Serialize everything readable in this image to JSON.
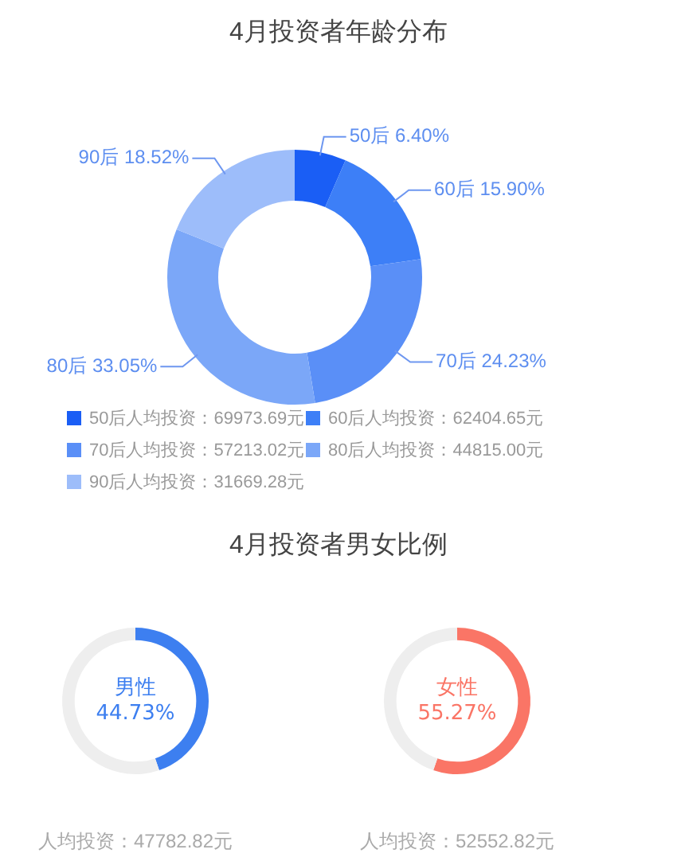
{
  "chart_data": [
    {
      "type": "donut",
      "title": "4月投资者年龄分布",
      "categories": [
        "50后",
        "60后",
        "70后",
        "80后",
        "90后"
      ],
      "values": [
        6.4,
        15.9,
        24.23,
        33.05,
        18.52
      ],
      "colors": [
        "#1a5ef5",
        "#3d7ff7",
        "#5a8ff7",
        "#7ba7f8",
        "#9dbdfa"
      ],
      "value_labels": [
        "6.40%",
        "15.90%",
        "24.23%",
        "33.05%",
        "18.52%"
      ],
      "annotations": [
        "人均投资：69973.69元",
        "人均投资：62404.65元",
        "人均投资：57213.02元",
        "人均投资：44815.00元",
        "人均投资：31669.28元"
      ]
    },
    {
      "type": "donut",
      "title": "4月投资者男女比例",
      "categories": [
        "男性",
        null
      ],
      "values": [
        44.73,
        55.27
      ],
      "colors": [
        "#3d7ff0",
        "#eeeeee"
      ],
      "value_labels": [
        "44.73%",
        null
      ],
      "annotations": [
        "人均投资：47782.82元"
      ]
    },
    {
      "type": "donut",
      "categories": [
        "女性",
        null
      ],
      "values": [
        55.27,
        44.73
      ],
      "colors": [
        "#fa7566",
        "#eeeeee"
      ],
      "value_labels": [
        "55.27%",
        null
      ],
      "annotations": [
        "人均投资：52552.82元"
      ]
    }
  ]
}
